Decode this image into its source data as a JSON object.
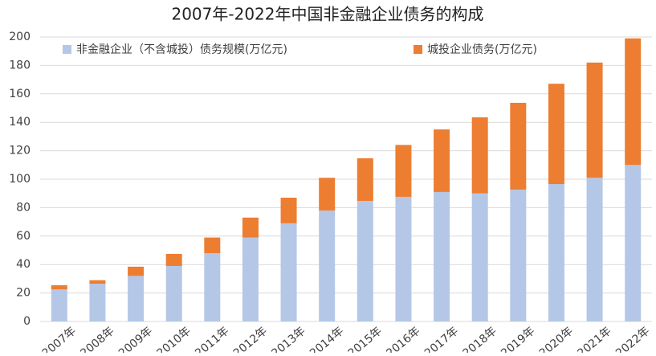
{
  "chart_data": {
    "type": "stacked_bar",
    "title": "2007年-2022年中国非金融企业债务的构成",
    "categories": [
      "2007年",
      "2008年",
      "2009年",
      "2010年",
      "2011年",
      "2012年",
      "2013年",
      "2014年",
      "2015年",
      "2016年",
      "2017年",
      "2018年",
      "2019年",
      "2020年",
      "2021年",
      "2022年"
    ],
    "series": [
      {
        "name": "非金融企业（不含城投）债务规模(万亿元)",
        "color": "#b4c7e7",
        "values": [
          22.5,
          26.5,
          32,
          39,
          48,
          59,
          69,
          78,
          84.7,
          87.6,
          91,
          90,
          92.7,
          96.6,
          101,
          110
        ]
      },
      {
        "name": "城投企业债务(万亿元)",
        "color": "#ed7d31",
        "values": [
          3,
          2.5,
          6.5,
          8.5,
          11,
          14,
          18,
          23,
          30,
          36.5,
          44,
          53.5,
          61,
          70.5,
          81,
          89
        ]
      }
    ],
    "ylim": [
      0,
      200
    ],
    "yticks": [
      0,
      20,
      40,
      60,
      80,
      100,
      120,
      140,
      160,
      180,
      200
    ],
    "grid": true
  }
}
